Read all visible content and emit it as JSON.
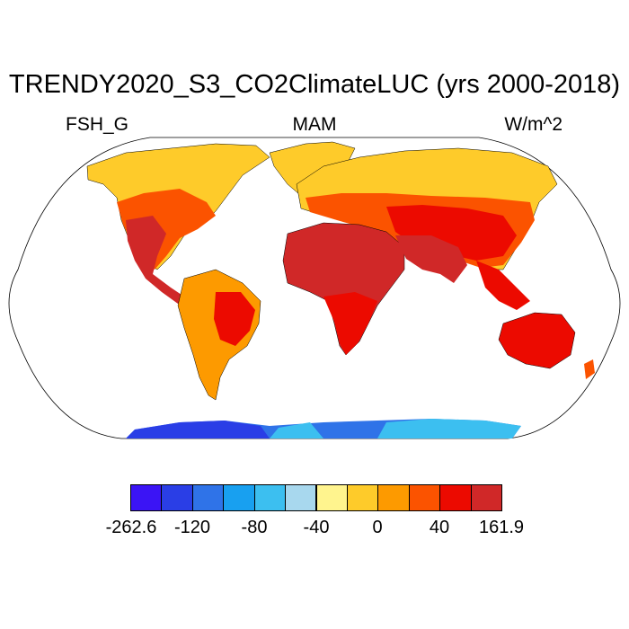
{
  "title": "TRENDY2020_S3_CO2ClimateLUC (yrs 2000-2018)",
  "variable": "FSH_G",
  "season": "MAM",
  "units": "W/m^2",
  "projection": "Robinson",
  "colorbar": {
    "colors": [
      "#3b14f5",
      "#2a3ee6",
      "#2f73e8",
      "#18a0f0",
      "#3cbff0",
      "#a8d8ee",
      "#fff48e",
      "#fecb2a",
      "#fd9a00",
      "#fb5300",
      "#ec0a00",
      "#d02828"
    ],
    "labels": [
      "-262.6",
      "-120",
      "-80",
      "-40",
      "0",
      "40",
      "161.9"
    ]
  },
  "colors": {
    "ocean": "#ffffff",
    "outline": "#000000",
    "polar": "#fecb2a",
    "hot": "#d02828",
    "warm": "#ec0a00",
    "mid": "#fb5300",
    "mild": "#fd9a00",
    "cool": "#fecb2a",
    "ant_dark": "#2a3ee6",
    "ant_mid": "#2f73e8",
    "ant_light": "#3cbff0"
  }
}
